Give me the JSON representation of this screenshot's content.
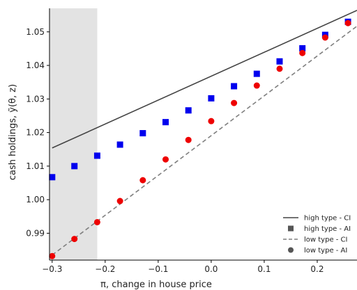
{
  "chart_data": {
    "type": "scatter",
    "title": "",
    "xlabel": "π, change in house price",
    "ylabel": "cash holdings, ỹ(θ, z)",
    "xlim": [
      -0.305,
      0.275
    ],
    "ylim": [
      0.982,
      1.057
    ],
    "grid": false,
    "legend_position": "lower-right",
    "shaded_region": {
      "x_from": -0.305,
      "x_to": -0.215,
      "color": "#e3e3e3"
    },
    "x_ticks": [
      -0.3,
      -0.2,
      -0.1,
      0.0,
      0.1,
      0.2
    ],
    "x_tick_labels": [
      "−0.3",
      "−0.2",
      "−0.1",
      "0.0",
      "0.1",
      "0.2"
    ],
    "y_ticks": [
      0.99,
      1.0,
      1.01,
      1.02,
      1.03,
      1.04,
      1.05
    ],
    "y_tick_labels": [
      "0.99",
      "1.00",
      "1.01",
      "1.02",
      "1.03",
      "1.04",
      "1.05"
    ],
    "series": [
      {
        "name": "high type - CI",
        "kind": "line",
        "style": "solid",
        "color": "#444444",
        "x": [
          -0.3,
          0.275
        ],
        "y": [
          1.0154,
          1.0564
        ]
      },
      {
        "name": "high type - AI",
        "kind": "marker",
        "marker": "square",
        "color": "#0000ee",
        "x": [
          -0.3,
          -0.258,
          -0.215,
          -0.172,
          -0.129,
          -0.086,
          -0.043,
          0.0,
          0.043,
          0.086,
          0.129,
          0.172,
          0.215,
          0.258
        ],
        "y": [
          1.0067,
          1.01,
          1.0131,
          1.0164,
          1.0198,
          1.0231,
          1.0266,
          1.0302,
          1.0338,
          1.0375,
          1.0412,
          1.0451,
          1.0491,
          1.053
        ]
      },
      {
        "name": "low type - CI",
        "kind": "line",
        "style": "dashed",
        "color": "#7f7f7f",
        "x": [
          -0.3,
          0.275
        ],
        "y": [
          0.9835,
          1.0517
        ]
      },
      {
        "name": "low type - AI",
        "kind": "marker",
        "marker": "circle",
        "color": "#ee0000",
        "x": [
          -0.3,
          -0.258,
          -0.215,
          -0.172,
          -0.129,
          -0.086,
          -0.043,
          0.0,
          0.043,
          0.086,
          0.129,
          0.172,
          0.215,
          0.258
        ],
        "y": [
          0.9832,
          0.9883,
          0.9933,
          0.9996,
          1.0058,
          1.012,
          1.0178,
          1.0234,
          1.0288,
          1.034,
          1.039,
          1.0437,
          1.0483,
          1.0526
        ]
      }
    ]
  }
}
